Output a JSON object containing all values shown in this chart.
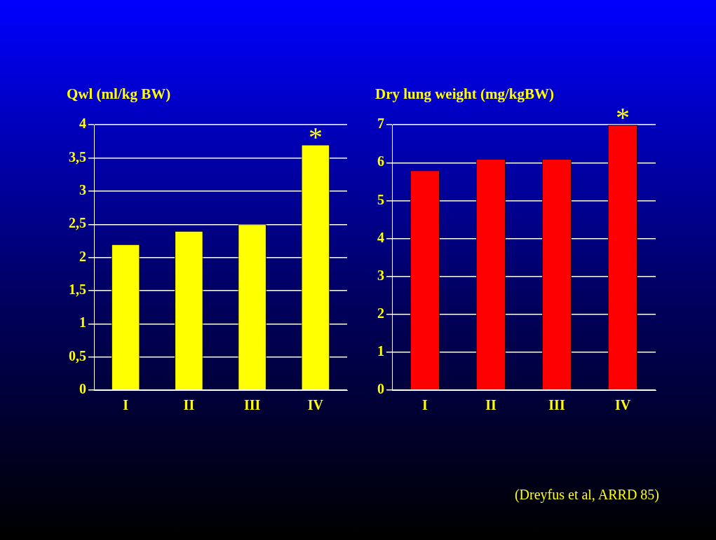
{
  "chart_data": [
    {
      "type": "bar",
      "ylabel": "Qwl (ml/kg BW)",
      "categories": [
        "I",
        "II",
        "III",
        "IV"
      ],
      "values": [
        2.2,
        2.4,
        2.5,
        3.7
      ],
      "color": "#ffff00",
      "ylim": [
        0,
        4
      ],
      "yticks": [
        0,
        {
          "value": 0.5,
          "label": "0,5"
        },
        1,
        {
          "value": 1.5,
          "label": "1,5"
        },
        2,
        {
          "value": 2.5,
          "label": "2,5"
        },
        3,
        {
          "value": 3.5,
          "label": "3,5"
        },
        4
      ],
      "grid": "y",
      "legend": false,
      "annotations": [
        {
          "text": "*",
          "x": "IV",
          "y": 3.7
        }
      ]
    },
    {
      "type": "bar",
      "ylabel": "Dry lung weight (mg/kgBW)",
      "categories": [
        "I",
        "II",
        "III",
        "IV"
      ],
      "values": [
        5.8,
        6.1,
        6.1,
        7.0
      ],
      "color": "#ff0000",
      "ylim": [
        0,
        7
      ],
      "yticks": [
        0,
        1,
        2,
        3,
        4,
        5,
        6,
        7
      ],
      "grid": "y",
      "legend": false,
      "annotations": [
        {
          "text": "*",
          "x": "IV",
          "y": 7.0
        },
        "(Dreyfus et al, ARRD 85)"
      ]
    }
  ]
}
